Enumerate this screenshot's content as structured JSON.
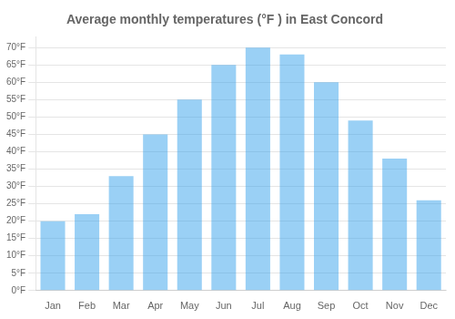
{
  "chart_data": {
    "type": "bar",
    "title": "Average monthly temperatures (°F ) in East Concord",
    "categories": [
      "Jan",
      "Feb",
      "Mar",
      "Apr",
      "May",
      "Jun",
      "Jul",
      "Aug",
      "Sep",
      "Oct",
      "Nov",
      "Dec"
    ],
    "values": [
      20,
      22,
      33,
      45,
      55,
      65,
      70,
      68,
      60,
      49,
      38,
      26
    ],
    "ylim": [
      0,
      73
    ],
    "yticks": [
      {
        "value": 0,
        "label": "0°F"
      },
      {
        "value": 5,
        "label": "5°F"
      },
      {
        "value": 10,
        "label": "10°F"
      },
      {
        "value": 15,
        "label": "15°F"
      },
      {
        "value": 20,
        "label": "20°F"
      },
      {
        "value": 25,
        "label": "25°F"
      },
      {
        "value": 30,
        "label": "30°F"
      },
      {
        "value": 35,
        "label": "35°F"
      },
      {
        "value": 40,
        "label": "40°F"
      },
      {
        "value": 45,
        "label": "45°F"
      },
      {
        "value": 50,
        "label": "50°F"
      },
      {
        "value": 55,
        "label": "55°F"
      },
      {
        "value": 60,
        "label": "60°F"
      },
      {
        "value": 65,
        "label": "65°F"
      },
      {
        "value": 70,
        "label": "70°F"
      }
    ],
    "grid": true
  }
}
